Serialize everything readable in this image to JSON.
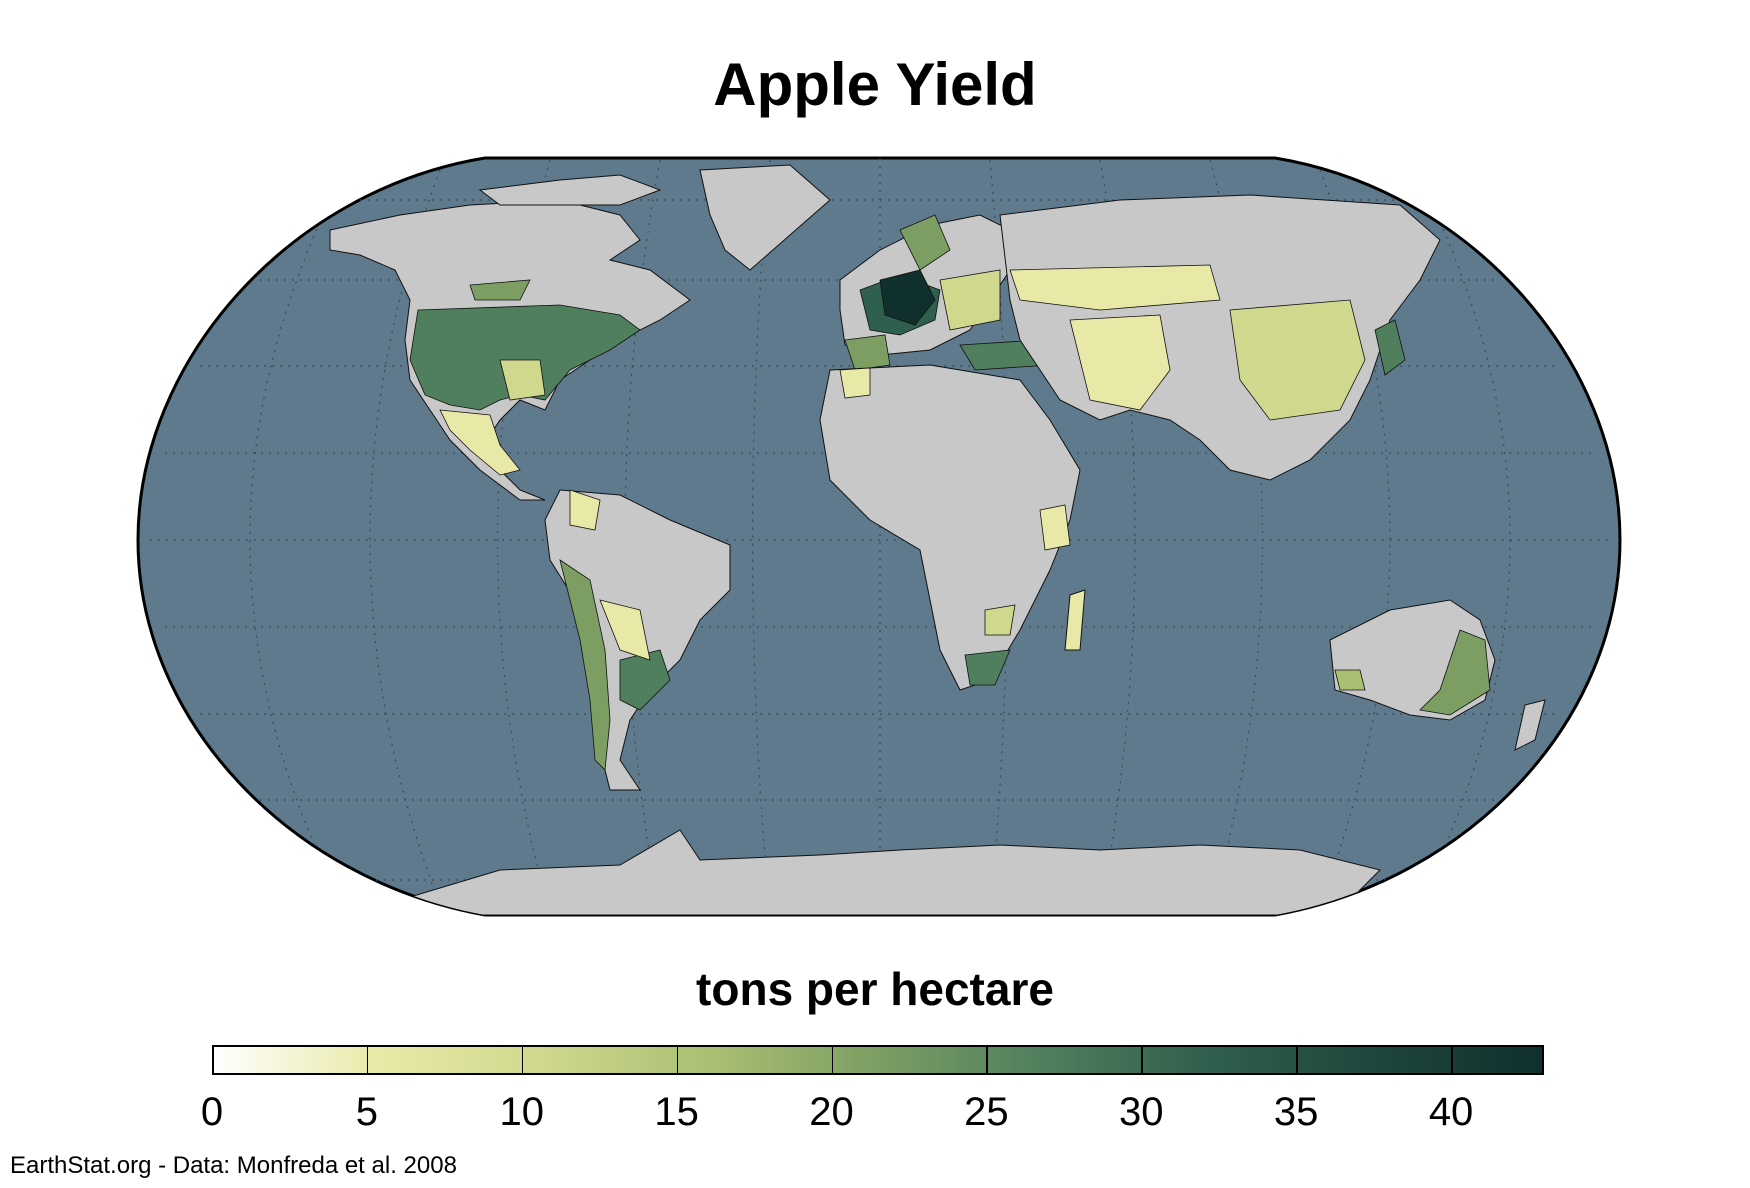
{
  "title": "Apple Yield",
  "legend": {
    "title": "tons per hectare",
    "ticks": [
      "0",
      "5",
      "10",
      "15",
      "20",
      "25",
      "30",
      "35",
      "40"
    ],
    "range": [
      0,
      43
    ],
    "colors": [
      "#ffffff",
      "#e8e9a7",
      "#cfd88d",
      "#a9bf72",
      "#7c9e63",
      "#4f7f5d",
      "#2f5f4d",
      "#1e463c",
      "#10302d"
    ]
  },
  "credit": "EarthStat.org - Data: Monfreda et al. 2008",
  "colors": {
    "ocean": "#5f7a8c",
    "land_no_data": "#c8c8c8",
    "border": "#000000",
    "graticule": "#444444"
  }
}
